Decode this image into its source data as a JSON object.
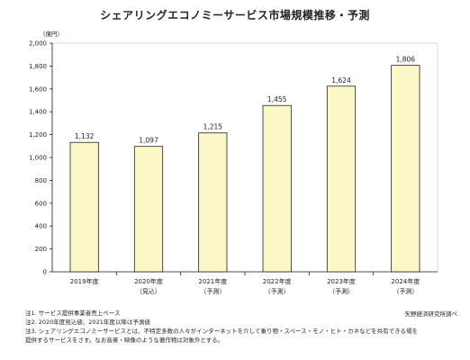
{
  "chart_data": {
    "type": "bar",
    "title": "シェアリングエコノミーサービス市場規模推移・予測",
    "unit_label": "（億円）",
    "categories": [
      {
        "label": "2019年度",
        "sub": ""
      },
      {
        "label": "2020年度",
        "sub": "（見込）"
      },
      {
        "label": "2021年度",
        "sub": "（予測）"
      },
      {
        "label": "2022年度",
        "sub": "（予測）"
      },
      {
        "label": "2023年度",
        "sub": "（予測）"
      },
      {
        "label": "2024年度",
        "sub": "（予測）"
      }
    ],
    "values": [
      1132,
      1097,
      1215,
      1455,
      1624,
      1806
    ],
    "data_labels": [
      "1,132",
      "1,097",
      "1,215",
      "1,455",
      "1,624",
      "1,806"
    ],
    "ylim": [
      0,
      2000
    ],
    "yticks": [
      0,
      200,
      400,
      600,
      800,
      1000,
      1200,
      1400,
      1600,
      1800,
      2000
    ],
    "ytick_labels": [
      "0",
      "200",
      "400",
      "600",
      "800",
      "1,000",
      "1,200",
      "1,400",
      "1,600",
      "1,800",
      "2,000"
    ],
    "grid": false,
    "colors": {
      "bar_fill": "#fbf7c6",
      "bar_stroke": "#222222",
      "plot_border": "#cfcfcf",
      "axis": "#222222"
    }
  },
  "notes": [
    "注1. サービス提供事業者売上ベース",
    "注2. 2020年度見込値、2021年度以降は予測値",
    "注3. シェアリングエコノミーサービスとは、不特定多数の人々がインターネットを介して乗り物・スペース・モノ・ヒト・カネなどを共有できる場を",
    "提供するサービスをさす。なお音楽・映像のような著作物は対象外とする。"
  ],
  "source": "矢野経済研究所調べ"
}
